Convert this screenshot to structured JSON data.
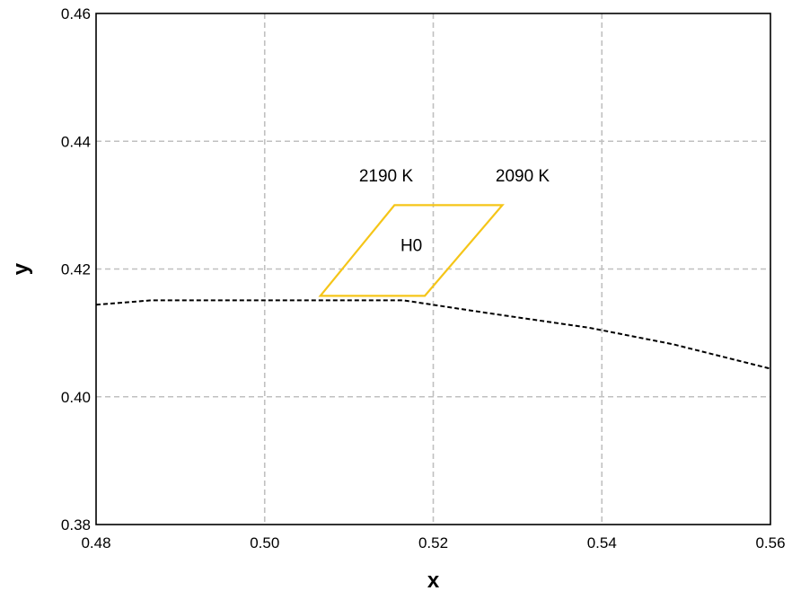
{
  "chart_data": {
    "type": "line",
    "title": "",
    "xlabel": "x",
    "ylabel": "y",
    "xlim": [
      0.48,
      0.56
    ],
    "ylim": [
      0.38,
      0.46
    ],
    "x_ticks": [
      "0.48",
      "0.50",
      "0.52",
      "0.54",
      "0.56"
    ],
    "y_ticks": [
      "0.38",
      "0.40",
      "0.42",
      "0.44",
      "0.46"
    ],
    "grid": true,
    "legend": "none",
    "series": [
      {
        "style": "dashed",
        "color": "#000000",
        "x": [
          0.48,
          0.4865,
          0.4965,
          0.5065,
          0.5165,
          0.5265,
          0.5385,
          0.5485,
          0.56
        ],
        "y": [
          0.4144,
          0.4151,
          0.4151,
          0.4151,
          0.4151,
          0.4131,
          0.4108,
          0.4082,
          0.4044
        ]
      },
      {
        "style": "solid",
        "color": "#F5C518",
        "shape": "quadrilateral",
        "x": [
          0.5066,
          0.5154,
          0.5282,
          0.519
        ],
        "y": [
          0.4158,
          0.43,
          0.43,
          0.4158
        ]
      }
    ],
    "annotations": [
      {
        "text": "2190 K",
        "x": 0.5144,
        "y": 0.4337
      },
      {
        "text": "2090 K",
        "x": 0.5306,
        "y": 0.4337
      },
      {
        "text": "H0",
        "x": 0.5174,
        "y": 0.4228
      }
    ]
  }
}
